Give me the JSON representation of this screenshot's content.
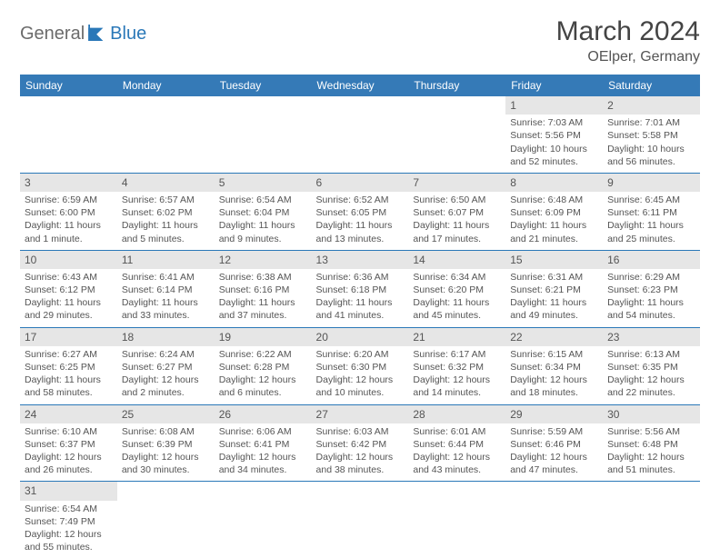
{
  "logo": {
    "part1": "General",
    "part2": "Blue"
  },
  "title": "March 2024",
  "location": "OElper, Germany",
  "colors": {
    "header_bg": "#357ab7",
    "header_text": "#ffffff",
    "daynum_bg": "#e6e6e6",
    "row_border": "#2a78b8",
    "text": "#555555",
    "logo_gray": "#6b6b6b",
    "logo_blue": "#2a78b8",
    "page_bg": "#ffffff"
  },
  "day_headers": [
    "Sunday",
    "Monday",
    "Tuesday",
    "Wednesday",
    "Thursday",
    "Friday",
    "Saturday"
  ],
  "weeks": [
    [
      null,
      null,
      null,
      null,
      null,
      {
        "n": "1",
        "sr": "Sunrise: 7:03 AM",
        "ss": "Sunset: 5:56 PM",
        "dl": "Daylight: 10 hours and 52 minutes."
      },
      {
        "n": "2",
        "sr": "Sunrise: 7:01 AM",
        "ss": "Sunset: 5:58 PM",
        "dl": "Daylight: 10 hours and 56 minutes."
      }
    ],
    [
      {
        "n": "3",
        "sr": "Sunrise: 6:59 AM",
        "ss": "Sunset: 6:00 PM",
        "dl": "Daylight: 11 hours and 1 minute."
      },
      {
        "n": "4",
        "sr": "Sunrise: 6:57 AM",
        "ss": "Sunset: 6:02 PM",
        "dl": "Daylight: 11 hours and 5 minutes."
      },
      {
        "n": "5",
        "sr": "Sunrise: 6:54 AM",
        "ss": "Sunset: 6:04 PM",
        "dl": "Daylight: 11 hours and 9 minutes."
      },
      {
        "n": "6",
        "sr": "Sunrise: 6:52 AM",
        "ss": "Sunset: 6:05 PM",
        "dl": "Daylight: 11 hours and 13 minutes."
      },
      {
        "n": "7",
        "sr": "Sunrise: 6:50 AM",
        "ss": "Sunset: 6:07 PM",
        "dl": "Daylight: 11 hours and 17 minutes."
      },
      {
        "n": "8",
        "sr": "Sunrise: 6:48 AM",
        "ss": "Sunset: 6:09 PM",
        "dl": "Daylight: 11 hours and 21 minutes."
      },
      {
        "n": "9",
        "sr": "Sunrise: 6:45 AM",
        "ss": "Sunset: 6:11 PM",
        "dl": "Daylight: 11 hours and 25 minutes."
      }
    ],
    [
      {
        "n": "10",
        "sr": "Sunrise: 6:43 AM",
        "ss": "Sunset: 6:12 PM",
        "dl": "Daylight: 11 hours and 29 minutes."
      },
      {
        "n": "11",
        "sr": "Sunrise: 6:41 AM",
        "ss": "Sunset: 6:14 PM",
        "dl": "Daylight: 11 hours and 33 minutes."
      },
      {
        "n": "12",
        "sr": "Sunrise: 6:38 AM",
        "ss": "Sunset: 6:16 PM",
        "dl": "Daylight: 11 hours and 37 minutes."
      },
      {
        "n": "13",
        "sr": "Sunrise: 6:36 AM",
        "ss": "Sunset: 6:18 PM",
        "dl": "Daylight: 11 hours and 41 minutes."
      },
      {
        "n": "14",
        "sr": "Sunrise: 6:34 AM",
        "ss": "Sunset: 6:20 PM",
        "dl": "Daylight: 11 hours and 45 minutes."
      },
      {
        "n": "15",
        "sr": "Sunrise: 6:31 AM",
        "ss": "Sunset: 6:21 PM",
        "dl": "Daylight: 11 hours and 49 minutes."
      },
      {
        "n": "16",
        "sr": "Sunrise: 6:29 AM",
        "ss": "Sunset: 6:23 PM",
        "dl": "Daylight: 11 hours and 54 minutes."
      }
    ],
    [
      {
        "n": "17",
        "sr": "Sunrise: 6:27 AM",
        "ss": "Sunset: 6:25 PM",
        "dl": "Daylight: 11 hours and 58 minutes."
      },
      {
        "n": "18",
        "sr": "Sunrise: 6:24 AM",
        "ss": "Sunset: 6:27 PM",
        "dl": "Daylight: 12 hours and 2 minutes."
      },
      {
        "n": "19",
        "sr": "Sunrise: 6:22 AM",
        "ss": "Sunset: 6:28 PM",
        "dl": "Daylight: 12 hours and 6 minutes."
      },
      {
        "n": "20",
        "sr": "Sunrise: 6:20 AM",
        "ss": "Sunset: 6:30 PM",
        "dl": "Daylight: 12 hours and 10 minutes."
      },
      {
        "n": "21",
        "sr": "Sunrise: 6:17 AM",
        "ss": "Sunset: 6:32 PM",
        "dl": "Daylight: 12 hours and 14 minutes."
      },
      {
        "n": "22",
        "sr": "Sunrise: 6:15 AM",
        "ss": "Sunset: 6:34 PM",
        "dl": "Daylight: 12 hours and 18 minutes."
      },
      {
        "n": "23",
        "sr": "Sunrise: 6:13 AM",
        "ss": "Sunset: 6:35 PM",
        "dl": "Daylight: 12 hours and 22 minutes."
      }
    ],
    [
      {
        "n": "24",
        "sr": "Sunrise: 6:10 AM",
        "ss": "Sunset: 6:37 PM",
        "dl": "Daylight: 12 hours and 26 minutes."
      },
      {
        "n": "25",
        "sr": "Sunrise: 6:08 AM",
        "ss": "Sunset: 6:39 PM",
        "dl": "Daylight: 12 hours and 30 minutes."
      },
      {
        "n": "26",
        "sr": "Sunrise: 6:06 AM",
        "ss": "Sunset: 6:41 PM",
        "dl": "Daylight: 12 hours and 34 minutes."
      },
      {
        "n": "27",
        "sr": "Sunrise: 6:03 AM",
        "ss": "Sunset: 6:42 PM",
        "dl": "Daylight: 12 hours and 38 minutes."
      },
      {
        "n": "28",
        "sr": "Sunrise: 6:01 AM",
        "ss": "Sunset: 6:44 PM",
        "dl": "Daylight: 12 hours and 43 minutes."
      },
      {
        "n": "29",
        "sr": "Sunrise: 5:59 AM",
        "ss": "Sunset: 6:46 PM",
        "dl": "Daylight: 12 hours and 47 minutes."
      },
      {
        "n": "30",
        "sr": "Sunrise: 5:56 AM",
        "ss": "Sunset: 6:48 PM",
        "dl": "Daylight: 12 hours and 51 minutes."
      }
    ],
    [
      {
        "n": "31",
        "sr": "Sunrise: 6:54 AM",
        "ss": "Sunset: 7:49 PM",
        "dl": "Daylight: 12 hours and 55 minutes."
      },
      null,
      null,
      null,
      null,
      null,
      null
    ]
  ]
}
